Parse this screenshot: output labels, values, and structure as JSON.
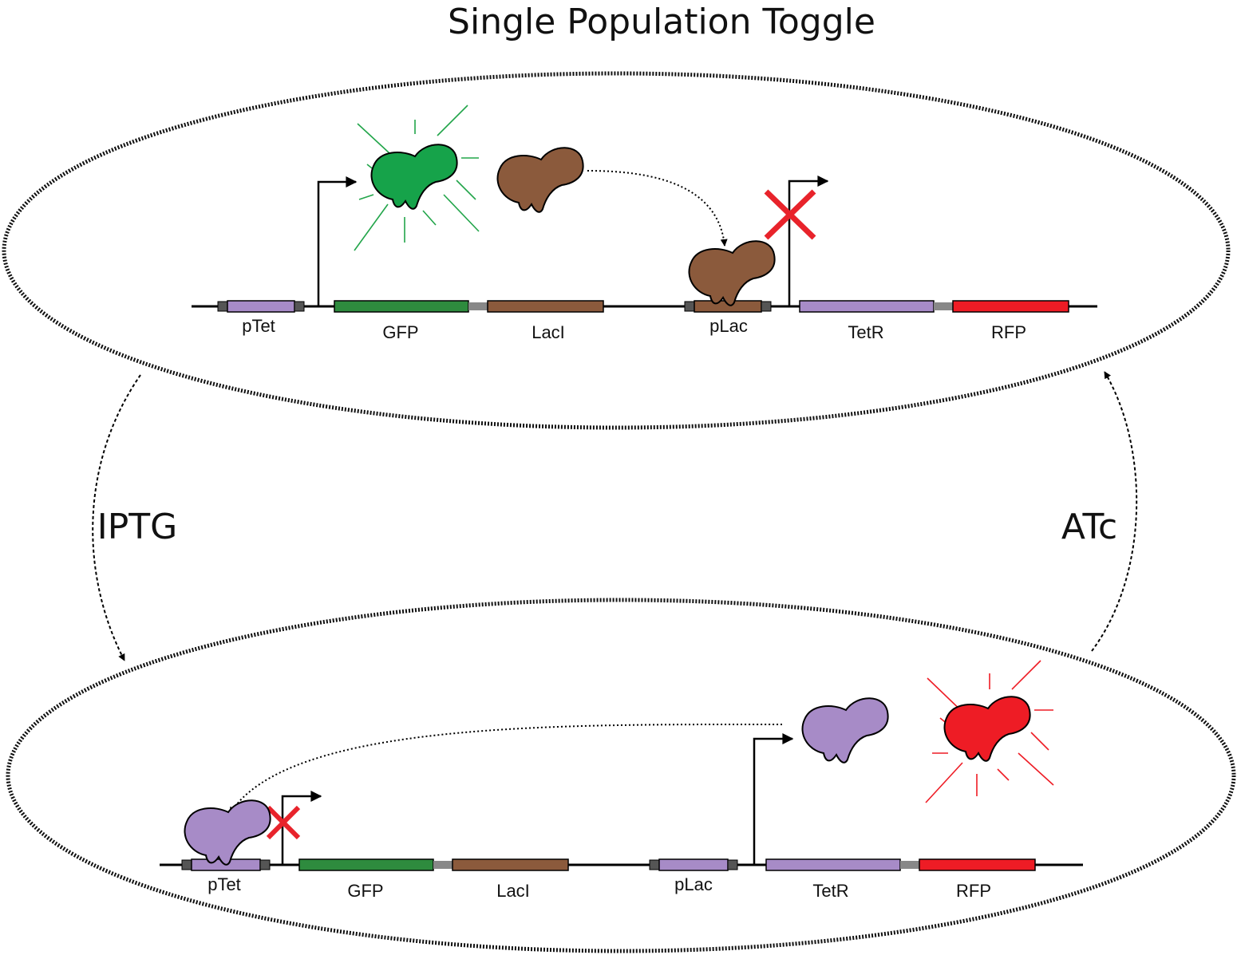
{
  "title": "Single Population Toggle",
  "transitions": {
    "down_label": "IPTG",
    "up_label": "ATc"
  },
  "colors": {
    "gfp": "#16a34a",
    "gfp_bar": "#2e8b3e",
    "laci": "#8b5a3c",
    "tetr": "#a78bc7",
    "rfp": "#ee1c25",
    "cross": "#e8232b",
    "linker": "#888888",
    "cap": "#555555"
  },
  "states": [
    {
      "id": "green-state",
      "active_promoter": "pTet",
      "repressed_promoter": "pLac",
      "parts": [
        {
          "label": "pTet",
          "type": "promoter",
          "color": "tetr"
        },
        {
          "label": "GFP",
          "type": "gene",
          "color": "gfp_bar"
        },
        {
          "label": "LacI",
          "type": "gene",
          "color": "laci"
        },
        {
          "label": "pLac",
          "type": "promoter",
          "color": "laci"
        },
        {
          "label": "TetR",
          "type": "gene",
          "color": "tetr"
        },
        {
          "label": "RFP",
          "type": "gene",
          "color": "rfp"
        }
      ]
    },
    {
      "id": "red-state",
      "active_promoter": "pLac",
      "repressed_promoter": "pTet",
      "parts": [
        {
          "label": "pTet",
          "type": "promoter",
          "color": "tetr"
        },
        {
          "label": "GFP",
          "type": "gene",
          "color": "gfp_bar"
        },
        {
          "label": "LacI",
          "type": "gene",
          "color": "laci"
        },
        {
          "label": "pLac",
          "type": "promoter",
          "color": "tetr"
        },
        {
          "label": "TetR",
          "type": "gene",
          "color": "tetr"
        },
        {
          "label": "RFP",
          "type": "gene",
          "color": "rfp"
        }
      ]
    }
  ]
}
